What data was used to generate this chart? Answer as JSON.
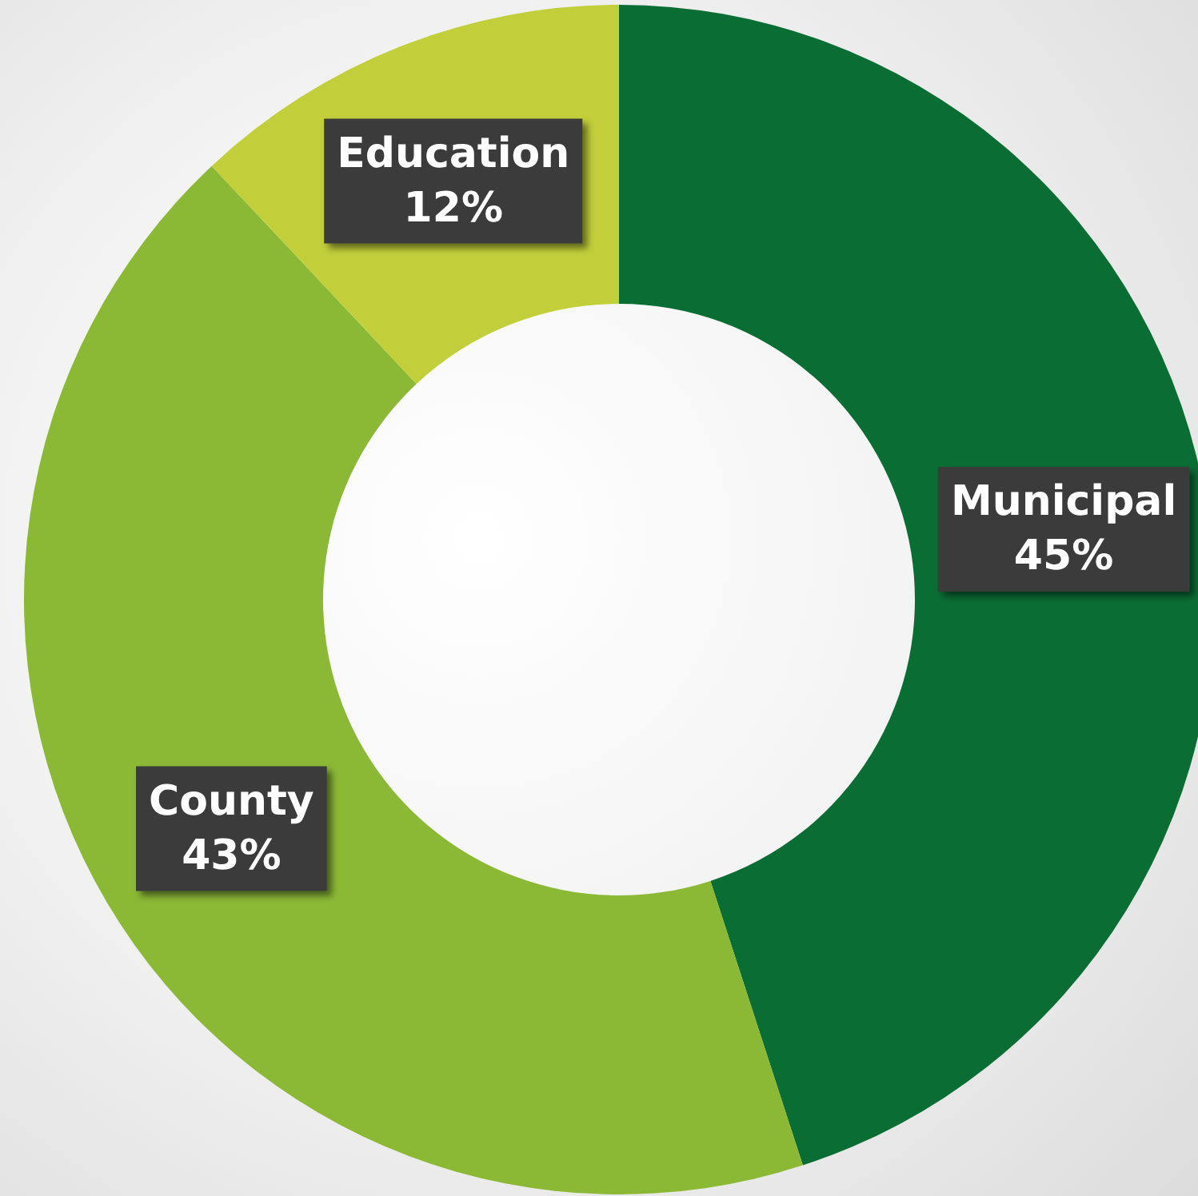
{
  "chart_data": {
    "type": "donut",
    "categories": [
      "Municipal",
      "County",
      "Education"
    ],
    "values": [
      45,
      43,
      12
    ],
    "value_labels": [
      "45%",
      "43%",
      "12%"
    ],
    "colors": [
      "#0a6e34",
      "#8bb935",
      "#c2cf3a"
    ],
    "legend": false
  }
}
